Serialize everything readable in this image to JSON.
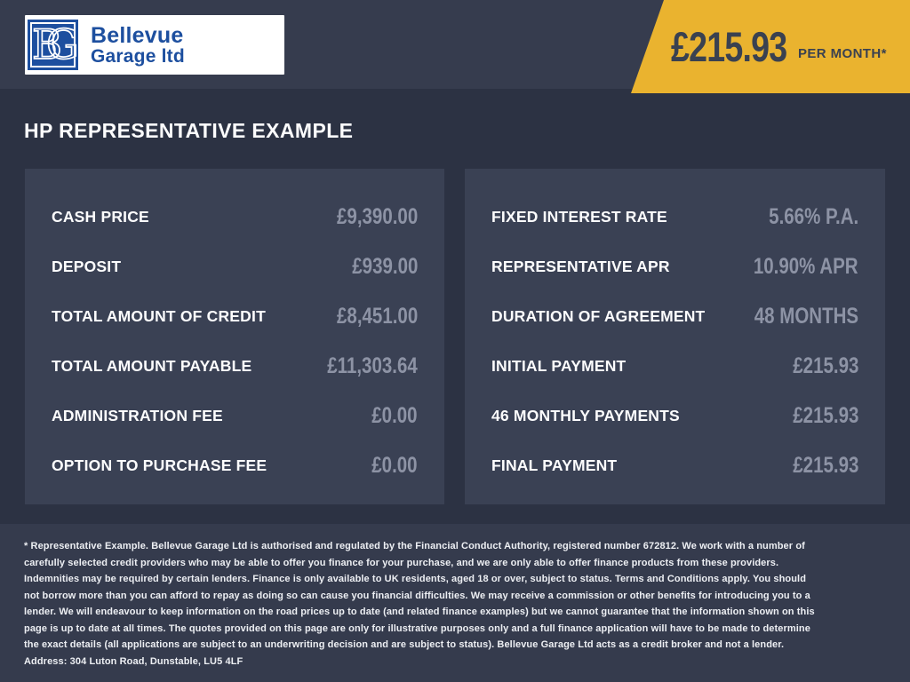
{
  "header": {
    "logo": {
      "monogram_b": "B",
      "monogram_g": "G",
      "name_line1": "Bellevue",
      "name_line2": "Garage ltd"
    },
    "price_banner": {
      "amount": "£215.93",
      "suffix": "PER MONTH*"
    }
  },
  "page_title": "HP REPRESENTATIVE EXAMPLE",
  "panels": {
    "left": {
      "rows": [
        {
          "label": "CASH PRICE",
          "value": "£9,390.00"
        },
        {
          "label": "DEPOSIT",
          "value": "£939.00"
        },
        {
          "label": "TOTAL AMOUNT OF CREDIT",
          "value": "£8,451.00"
        },
        {
          "label": "TOTAL AMOUNT PAYABLE",
          "value": "£11,303.64"
        },
        {
          "label": "ADMINISTRATION FEE",
          "value": "£0.00"
        },
        {
          "label": "OPTION TO PURCHASE FEE",
          "value": "£0.00"
        }
      ]
    },
    "right": {
      "rows": [
        {
          "label": "FIXED INTEREST RATE",
          "value": "5.66% P.A."
        },
        {
          "label": "REPRESENTATIVE APR",
          "value": "10.90% APR"
        },
        {
          "label": "DURATION OF AGREEMENT",
          "value": "48 MONTHS"
        },
        {
          "label": "INITIAL PAYMENT",
          "value": "£215.93"
        },
        {
          "label": "46 MONTHLY PAYMENTS",
          "value": "£215.93"
        },
        {
          "label": "FINAL PAYMENT",
          "value": "£215.93"
        }
      ]
    }
  },
  "footer": {
    "disclaimer": "* Representative Example. Bellevue Garage Ltd is authorised and regulated by the Financial Conduct Authority, registered number 672812. We work with a number of carefully selected credit providers who may be able to offer you finance for your purchase, and we are only able to offer finance products from these providers. Indemnities may be required by certain lenders. Finance is only available to UK residents, aged 18 or over, subject to status. Terms and Conditions apply. You should not borrow more than you can afford to repay as doing so can cause you financial difficulties. We may receive a commission or other benefits for introducing you to a lender. We will endeavour to keep information on the road prices up to date (and related finance examples) but we cannot guarantee that the information shown on this page is up to date at all times. The quotes provided on this page are only for illustrative purposes only and a full finance application will have to be made to determine the exact details (all applications are subject to an underwriting decision and are subject to status). Bellevue Garage Ltd acts as a credit broker and not a lender. Address: 304 Luton Road, Dunstable, LU5 4LF"
  },
  "colors": {
    "header_bg": "#363c4e",
    "body_bg": "#2c3243",
    "panel_bg": "#3a4154",
    "footer_bg": "#353b4d",
    "accent_yellow": "#eab32f",
    "banner_text": "#3a4150",
    "label_text": "#fdfdfe",
    "value_text": "#8d93a5",
    "logo_blue": "#1d4f9f"
  }
}
